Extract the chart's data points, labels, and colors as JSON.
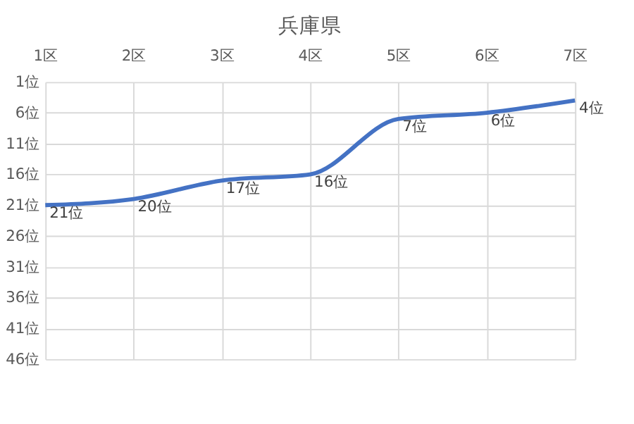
{
  "chart_data": {
    "type": "line",
    "title": "兵庫県",
    "categories": [
      "1区",
      "2区",
      "3区",
      "4区",
      "5区",
      "6区",
      "7区"
    ],
    "series": [
      {
        "color": "#4472c4",
        "values": [
          21,
          20,
          17,
          16,
          7,
          6,
          4
        ],
        "value_labels": [
          "21位",
          "20位",
          "17位",
          "16位",
          "7位",
          "6位",
          "4位"
        ]
      }
    ],
    "ylim": [
      46,
      1
    ],
    "yticks": [
      {
        "value": 1,
        "label": "1位"
      },
      {
        "value": 6,
        "label": "6位"
      },
      {
        "value": 11,
        "label": "11位"
      },
      {
        "value": 16,
        "label": "16位"
      },
      {
        "value": 21,
        "label": "21位"
      },
      {
        "value": 26,
        "label": "26位"
      },
      {
        "value": 31,
        "label": "31位"
      },
      {
        "value": 36,
        "label": "36位"
      },
      {
        "value": 41,
        "label": "41位"
      },
      {
        "value": 46,
        "label": "46位"
      }
    ],
    "grid": true,
    "legend": false,
    "marker": "none",
    "line_style": "solid"
  }
}
